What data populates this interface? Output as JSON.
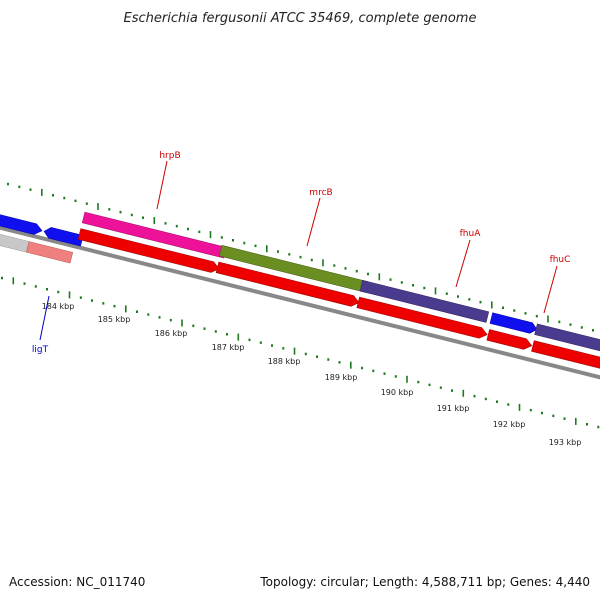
{
  "title": "Escherichia fergusonii ATCC 35469, complete genome",
  "footer": {
    "accession": "Accession: NC_011740",
    "summary": "Topology: circular; Length: 4,588,711 bp; Genes: 4,440"
  },
  "colors": {
    "tick": "#1f7a1f",
    "backbone": "#888888",
    "forward_label": "#cc0000",
    "reverse_label": "#0000cc"
  },
  "gene_labels": [
    {
      "name": "hrpB",
      "strand": "forward"
    },
    {
      "name": "mrcB",
      "strand": "forward"
    },
    {
      "name": "fhuA",
      "strand": "forward"
    },
    {
      "name": "fhuC",
      "strand": "forward"
    },
    {
      "name": "ligT",
      "strand": "reverse"
    }
  ],
  "scale_labels": [
    "184 kbp",
    "185 kbp",
    "186 kbp",
    "187 kbp",
    "188 kbp",
    "189 kbp",
    "190 kbp",
    "191 kbp",
    "192 kbp",
    "193 kbp"
  ],
  "features": [
    {
      "id": "blue-gene-1",
      "color": "#1010ee"
    },
    {
      "id": "blue-gene-2",
      "color": "#1010ee"
    },
    {
      "id": "grey-gene",
      "color": "#c8c8c8"
    },
    {
      "id": "pink-gene",
      "color": "#ee8080"
    },
    {
      "id": "hrpB-gene",
      "color": "#ee1199"
    },
    {
      "id": "hrpB-cds",
      "color": "#ee0000"
    },
    {
      "id": "mrcB-gene",
      "color": "#6b8e23"
    },
    {
      "id": "mrcB-cds",
      "color": "#ee0000"
    },
    {
      "id": "fhuA-gene",
      "color": "#4b3b8f"
    },
    {
      "id": "fhuA-cds",
      "color": "#ee0000"
    },
    {
      "id": "fhuC-gene",
      "color": "#1010ee"
    },
    {
      "id": "fhuC-cds",
      "color": "#ee0000"
    },
    {
      "id": "fhuD-gene",
      "color": "#4b3b8f"
    },
    {
      "id": "fhuD-cds",
      "color": "#ee0000"
    }
  ]
}
